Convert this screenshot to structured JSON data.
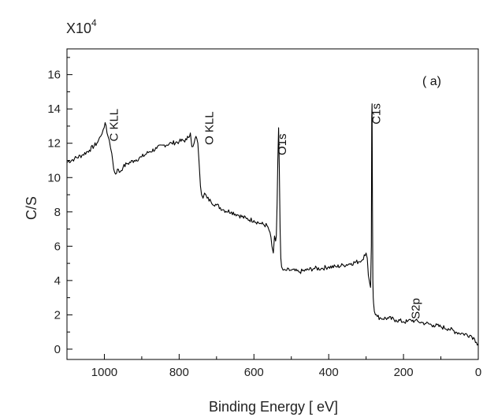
{
  "chart_data": {
    "type": "line",
    "title": "",
    "panel_label": "( a)",
    "xlabel": "Binding Energy   [ eV]",
    "ylabel": "C/S",
    "y_multiplier_base": "X10",
    "y_multiplier_exp": "4",
    "xlim": [
      1100,
      0
    ],
    "ylim": [
      -0.6,
      17.5
    ],
    "x_reversed": true,
    "grid": false,
    "x_ticks": [
      1000,
      800,
      600,
      400,
      200,
      0
    ],
    "x_tick_labels": [
      "1000",
      "800",
      "600",
      "400",
      "200",
      "0"
    ],
    "y_ticks": [
      0,
      2,
      4,
      6,
      8,
      10,
      12,
      14,
      16
    ],
    "y_tick_labels": [
      "0",
      "2",
      "4",
      "6",
      "8",
      "10",
      "12",
      "14",
      "16"
    ],
    "annotations": [
      {
        "text": "C KLL",
        "x": 975,
        "y": 12.1
      },
      {
        "text": "O KLL",
        "x": 720,
        "y": 11.9
      },
      {
        "text": "O1s",
        "x": 525,
        "y": 11.3
      },
      {
        "text": "C1s",
        "x": 273,
        "y": 13.1
      },
      {
        "text": "S2p",
        "x": 168,
        "y": 1.75
      }
    ],
    "series": [
      {
        "line_color": "#000000",
        "x": [
          1100,
          1080,
          1060,
          1040,
          1020,
          1010,
          1003,
          998,
          993,
          987,
          980,
          975,
          970,
          965,
          960,
          950,
          940,
          920,
          900,
          880,
          860,
          840,
          820,
          800,
          780,
          770,
          766,
          760,
          755,
          750,
          747,
          743,
          740,
          736,
          732,
          725,
          715,
          700,
          680,
          660,
          640,
          620,
          600,
          580,
          565,
          557,
          552,
          548,
          545,
          542,
          540,
          538,
          536,
          534,
          532,
          530,
          528,
          526,
          522,
          515,
          500,
          480,
          460,
          440,
          420,
          400,
          380,
          360,
          340,
          320,
          310,
          305,
          300,
          297,
          294,
          290,
          288,
          286,
          285,
          284,
          283,
          282,
          281,
          280,
          278,
          275,
          270,
          260,
          240,
          220,
          200,
          190,
          180,
          170,
          160,
          150,
          140,
          120,
          100,
          80,
          60,
          40,
          20,
          10,
          5,
          0
        ],
        "y": [
          10.9,
          11.1,
          11.3,
          11.6,
          12.0,
          12.4,
          12.8,
          13.2,
          12.6,
          12.2,
          11.4,
          10.5,
          10.2,
          10.5,
          10.3,
          10.6,
          10.8,
          11.0,
          11.2,
          11.5,
          11.7,
          11.9,
          12.0,
          12.1,
          12.2,
          12.6,
          11.8,
          12.0,
          12.4,
          12.0,
          11.0,
          9.5,
          9.0,
          8.8,
          9.1,
          8.8,
          8.6,
          8.4,
          8.1,
          8.0,
          7.8,
          7.6,
          7.5,
          7.3,
          7.2,
          6.8,
          6.0,
          5.6,
          6.6,
          6.3,
          6.6,
          8.5,
          11.0,
          12.9,
          10.5,
          7.0,
          5.3,
          4.8,
          4.6,
          4.6,
          4.6,
          4.5,
          4.6,
          4.7,
          4.7,
          4.8,
          4.8,
          4.9,
          5.0,
          5.1,
          5.2,
          5.5,
          5.6,
          5.3,
          4.3,
          3.8,
          3.6,
          6.0,
          13.5,
          14.3,
          8.5,
          4.0,
          3.0,
          2.7,
          2.2,
          2.0,
          1.9,
          1.8,
          1.8,
          1.7,
          1.6,
          1.6,
          1.7,
          1.65,
          1.6,
          1.55,
          1.5,
          1.4,
          1.3,
          1.2,
          1.0,
          0.9,
          0.8,
          0.6,
          0.4,
          0.3
        ]
      }
    ]
  }
}
